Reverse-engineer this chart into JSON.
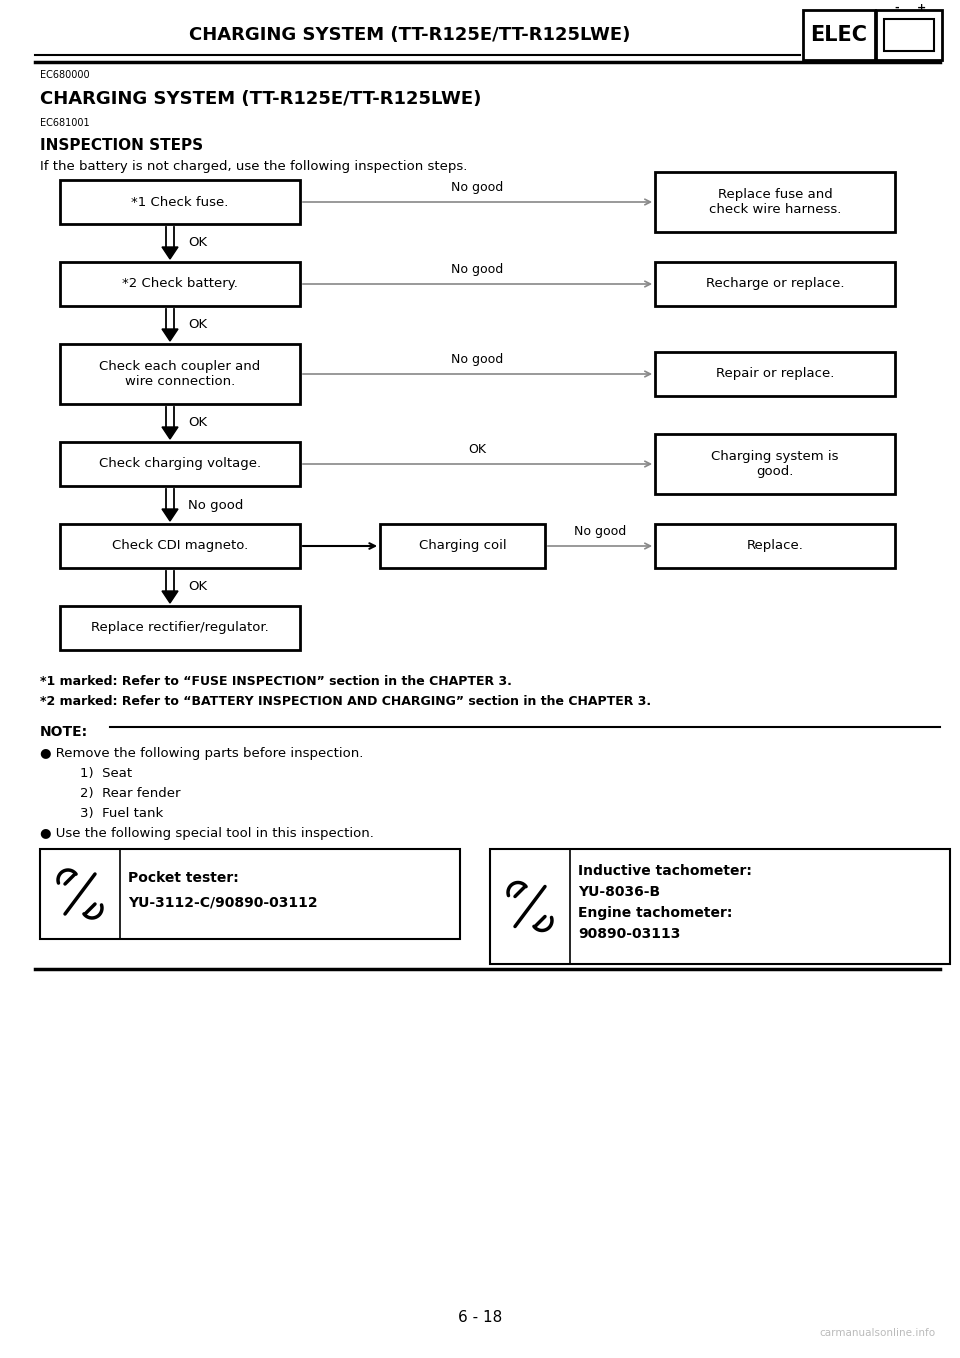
{
  "title_header": "CHARGING SYSTEM (TT-R125E/TT-R125LWE)",
  "elec_label": "ELEC",
  "code1": "EC680000",
  "title_main": "CHARGING SYSTEM (TT-R125E/TT-R125LWE)",
  "code2": "EC681001",
  "section_title": "INSPECTION STEPS",
  "intro_text": "If the battery is not charged, use the following inspection steps.",
  "page_number": "6 - 18",
  "watermark": "carmanualsonline.info",
  "bg_color": "#ffffff",
  "footnote1_parts": [
    "*1 marked: Refer to “FUSE INSPECTION” section in the CHAPTER 3."
  ],
  "footnote2_parts": [
    "*2 marked: Refer to “BATTERY INSPECTION AND CHARGING” section in the CHAPTER 3."
  ],
  "note_label": "NOTE:",
  "note_bullets": [
    "● Remove the following parts before inspection.",
    "1)  Seat",
    "2)  Rear fender",
    "3)  Fuel tank",
    "● Use the following special tool in this inspection."
  ],
  "tool1_title": "Pocket tester:",
  "tool1_code": "YU-3112-C/90890-03112",
  "tool2_title": "Inductive tachometer:",
  "tool2_line2": "YU-8036-B",
  "tool2_line3": "Engine tachometer:",
  "tool2_line4": "90890-03113",
  "left_boxes": [
    "*1 Check fuse.",
    "*2 Check battery.",
    "Check each coupler and\nwire connection.",
    "Check charging voltage.",
    "Check CDI magneto.",
    "Replace rectifier/regulator."
  ],
  "right_boxes": [
    "Replace fuse and\ncheck wire harness.",
    "Recharge or replace.",
    "Repair or replace.",
    "Charging system is\ngood.",
    "Replace."
  ],
  "mid_box": "Charging coil",
  "v_arrow_labels": [
    "OK",
    "OK",
    "OK",
    "No good",
    "OK"
  ],
  "h_arrow_labels": [
    "No good",
    "No good",
    "No good",
    "OK",
    "",
    "No good"
  ]
}
